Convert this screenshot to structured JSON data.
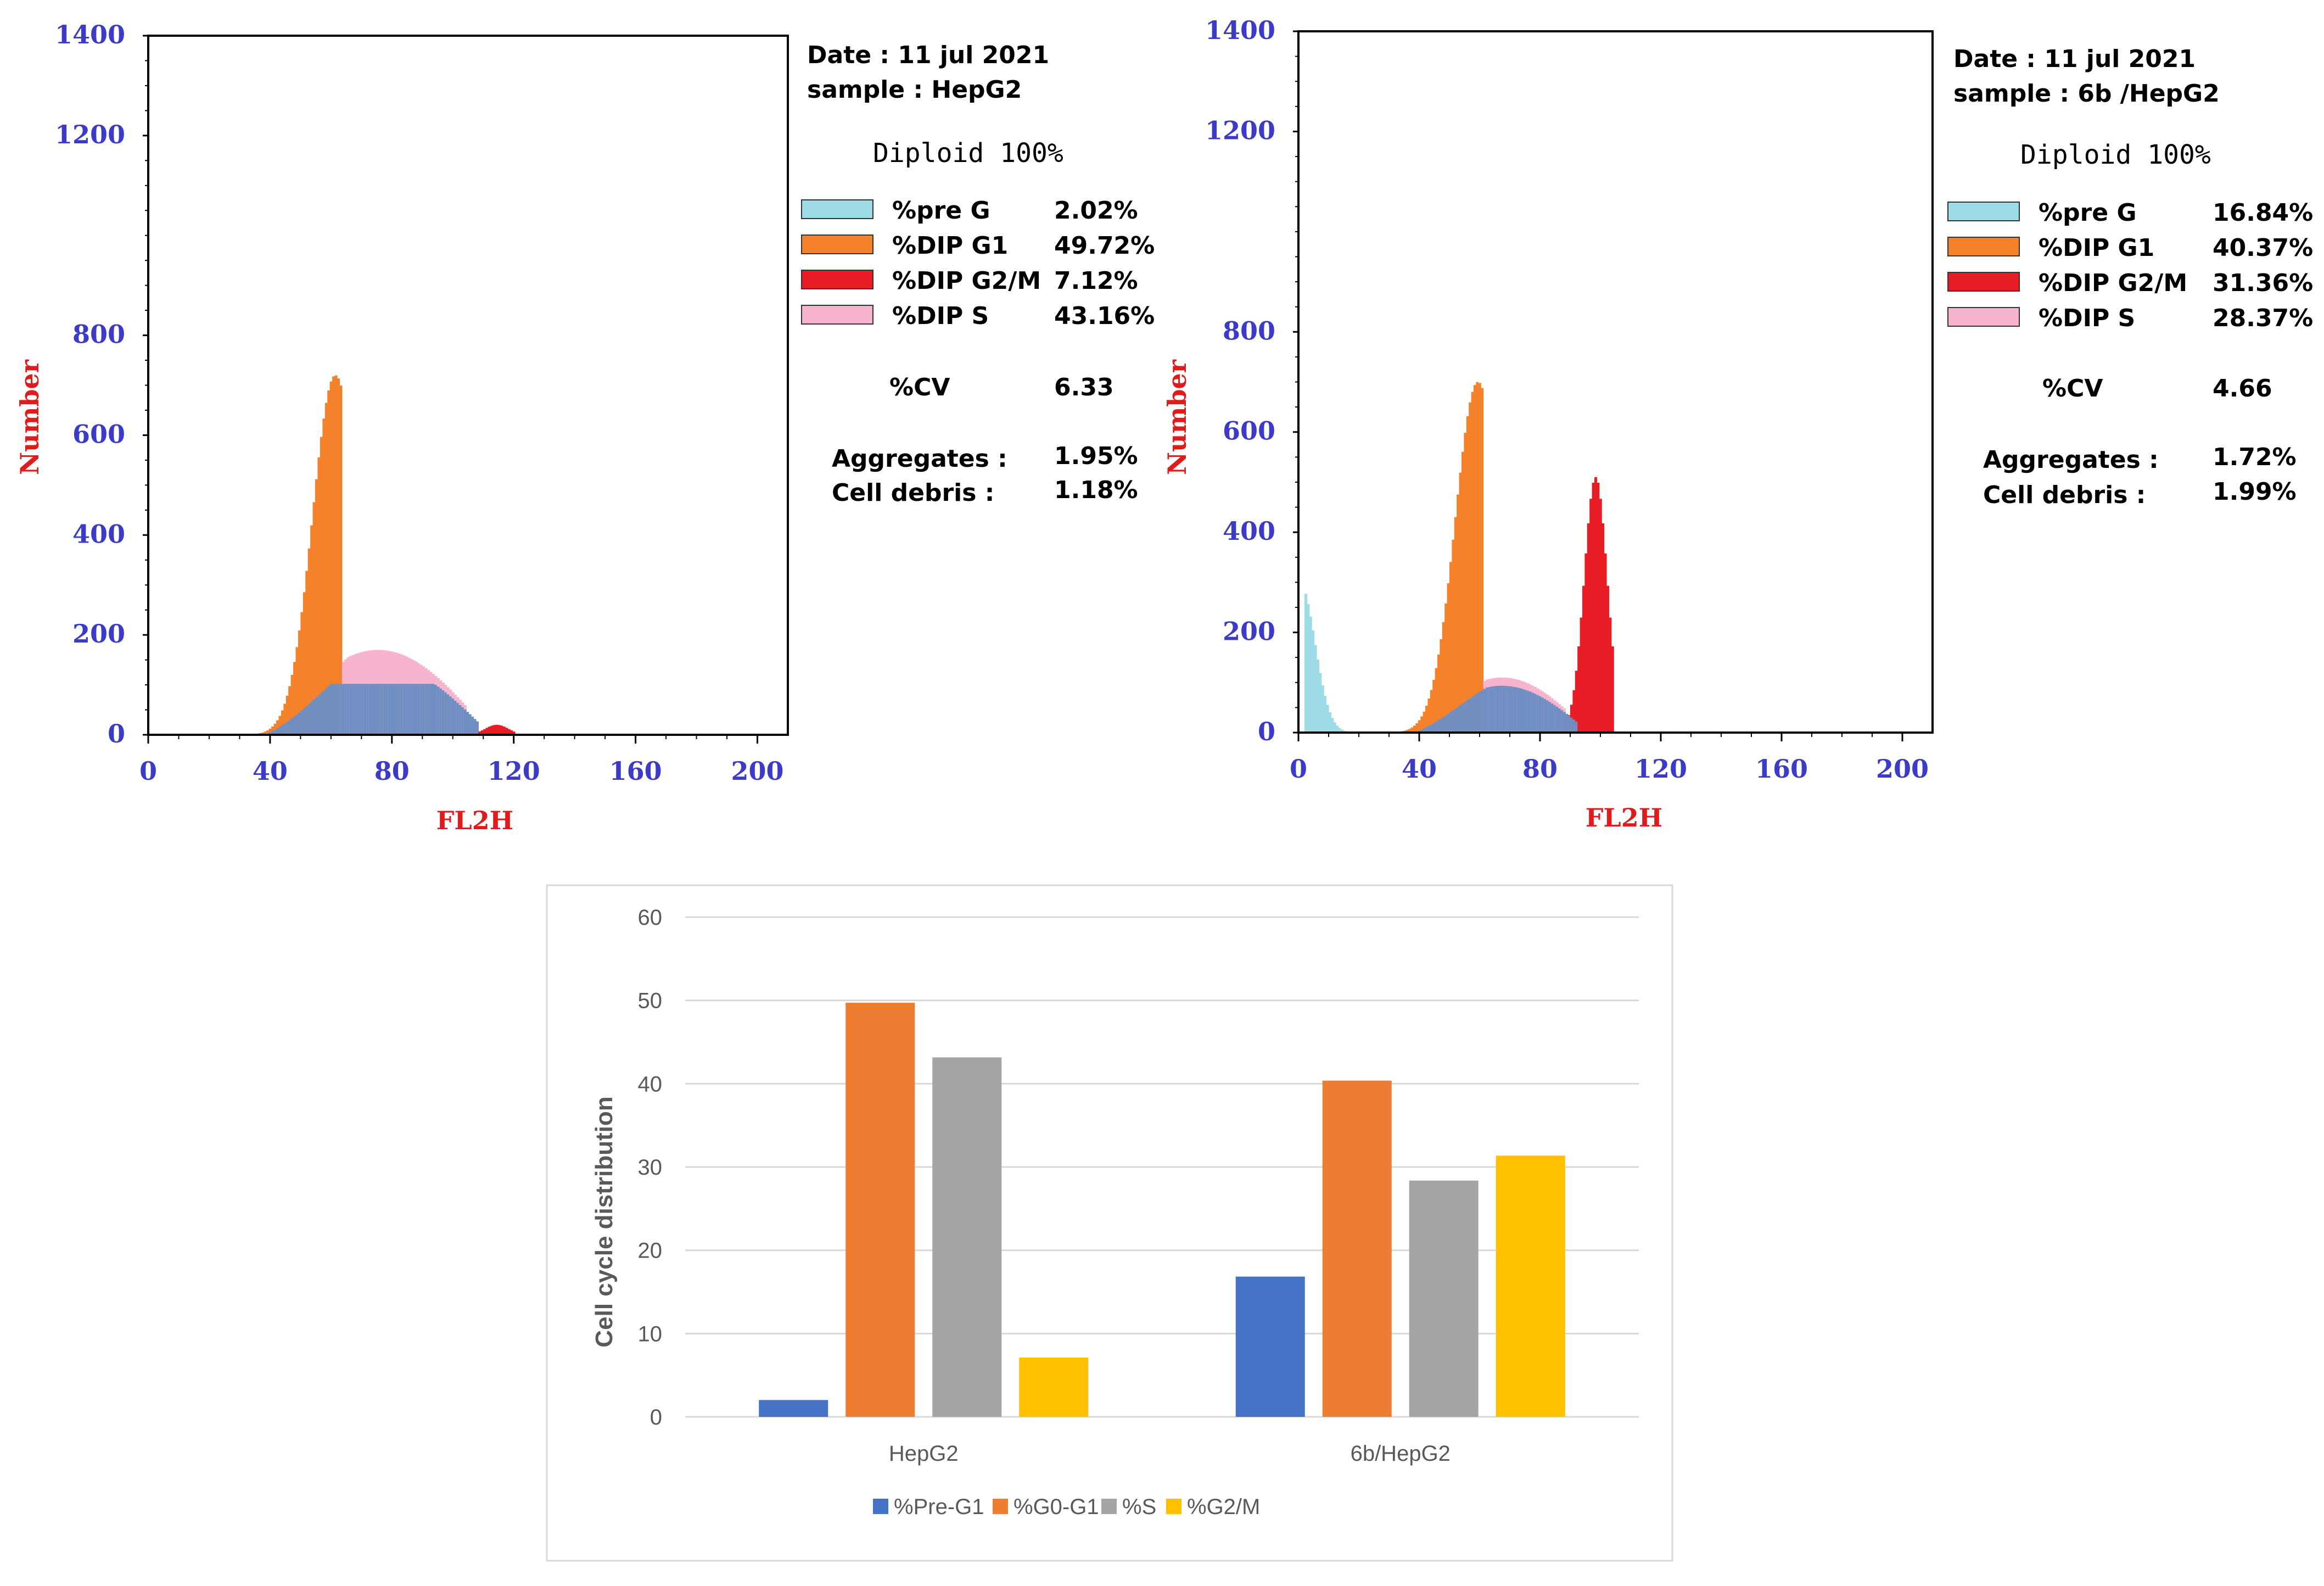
{
  "chart_data": [
    {
      "type": "histogram",
      "panel": "left",
      "xlabel": "FL2H",
      "ylabel": "Number",
      "xlim": [
        0,
        210
      ],
      "ylim": [
        0,
        1400
      ],
      "x_ticks": [
        "0",
        "40",
        "80",
        "120",
        "160",
        "200"
      ],
      "y_ticks": [
        "0",
        "200",
        "400",
        "600",
        "800",
        "1200",
        "1400"
      ],
      "date": "Date : 11 jul 2021",
      "sample": "sample :  HepG2",
      "diploid": "Diploid 100%",
      "legend": [
        {
          "label": "%pre G",
          "value": "2.02%",
          "color": "#9ddbe6"
        },
        {
          "label": "%DIP G1",
          "value": "49.72%",
          "color": "#f5822a"
        },
        {
          "label": "%DIP G2/M",
          "value": "7.12%",
          "color": "#e81c24"
        },
        {
          "label": "%DIP S",
          "value": "43.16%",
          "color": "#f7b4cf"
        }
      ],
      "cv_label": "%CV",
      "cv_value": "6.33",
      "aggregates_label": "Aggregates :",
      "aggregates_value": "1.95%",
      "debris_label": "Cell debris :",
      "debris_value": "1.18%",
      "peaks": {
        "g1_center": 61,
        "g1_height": 720,
        "s_start": 65,
        "s_end": 108,
        "s_height": 170,
        "g2_center": 114,
        "g2_height": 20,
        "preg_height": 0
      }
    },
    {
      "type": "histogram",
      "panel": "right",
      "xlabel": "FL2H",
      "ylabel": "Number",
      "xlim": [
        0,
        210
      ],
      "ylim": [
        0,
        1400
      ],
      "x_ticks": [
        "0",
        "40",
        "80",
        "120",
        "160",
        "200"
      ],
      "y_ticks": [
        "0",
        "200",
        "400",
        "600",
        "800",
        "1200",
        "1400"
      ],
      "date": "Date : 11 jul 2021",
      "sample": "sample :   6b /HepG2",
      "diploid": "Diploid 100%",
      "legend": [
        {
          "label": "%pre G",
          "value": "16.84%",
          "color": "#9ddbe6"
        },
        {
          "label": "%DIP G1",
          "value": "40.37%",
          "color": "#f5822a"
        },
        {
          "label": "%DIP G2/M",
          "value": "31.36%",
          "color": "#e81c24"
        },
        {
          "label": "%DIP S",
          "value": "28.37%",
          "color": "#f7b4cf"
        }
      ],
      "cv_label": "%CV",
      "cv_value": "4.66",
      "aggregates_label": "Aggregates :",
      "aggregates_value": "1.72%",
      "debris_label": "Cell debris :",
      "debris_value": "1.99%",
      "peaks": {
        "g1_center": 59,
        "g1_height": 700,
        "s_start": 62,
        "s_end": 92,
        "s_height": 110,
        "g2_center": 98,
        "g2_height": 510,
        "preg_height": 300
      }
    },
    {
      "type": "bar",
      "panel": "bottom",
      "categories": [
        "HepG2",
        "6b/HepG2"
      ],
      "series": [
        {
          "name": "%Pre-G1",
          "values": [
            2.02,
            16.84
          ],
          "color": "#4472c4"
        },
        {
          "name": "%G0-G1",
          "values": [
            49.72,
            40.37
          ],
          "color": "#ed7d31"
        },
        {
          "name": "%S",
          "values": [
            43.16,
            28.37
          ],
          "color": "#a5a5a5"
        },
        {
          "name": "%G2/M",
          "values": [
            7.12,
            31.36
          ],
          "color": "#ffc000"
        }
      ],
      "ylabel": "Cell cycle distribution",
      "ylim": [
        0,
        60
      ],
      "y_ticks": [
        "0",
        "10",
        "20",
        "30",
        "40",
        "50",
        "60"
      ],
      "legend": "bottom"
    }
  ]
}
